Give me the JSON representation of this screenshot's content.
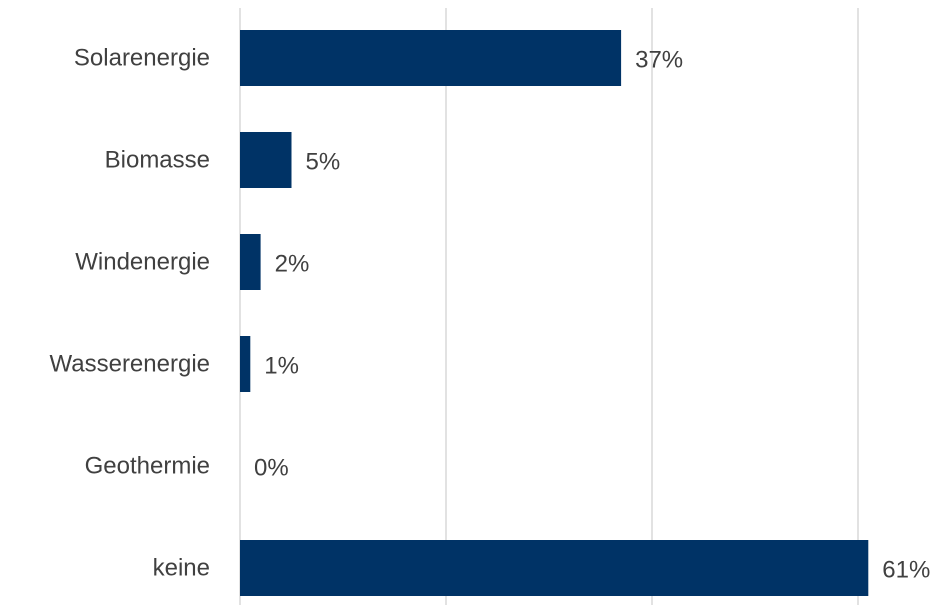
{
  "chart_data": {
    "type": "bar",
    "orientation": "horizontal",
    "categories": [
      "Solarenergie",
      "Biomasse",
      "Windenergie",
      "Wasserenergie",
      "Geothermie",
      "keine"
    ],
    "values": [
      37,
      5,
      2,
      1,
      0,
      61
    ],
    "value_labels": [
      "37%",
      "5%",
      "2%",
      "1%",
      "0%",
      "61%"
    ],
    "unit": "%",
    "xlim": [
      0,
      60
    ],
    "grid": true,
    "legend": "none",
    "title": "",
    "xlabel": "",
    "ylabel": "",
    "colors": {
      "bar": "#003366",
      "text": "#404040",
      "grid": "#d9d9d9"
    }
  }
}
